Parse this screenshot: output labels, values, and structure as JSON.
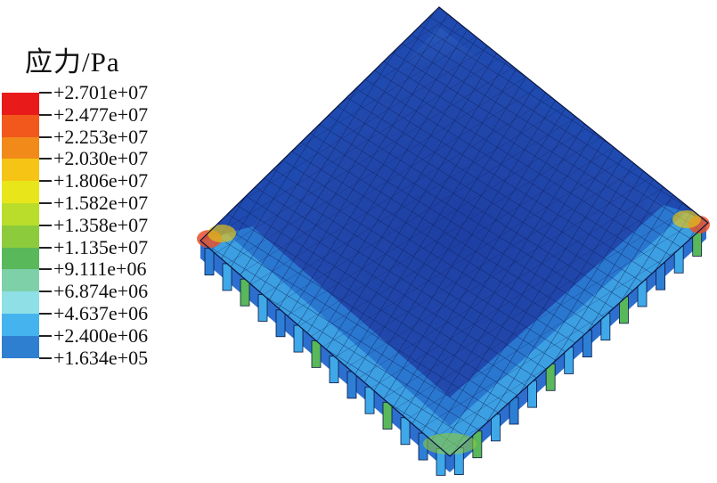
{
  "legend": {
    "title": "应力/Pa",
    "values": [
      "+2.701e+07",
      "+2.477e+07",
      "+2.253e+07",
      "+2.030e+07",
      "+1.806e+07",
      "+1.582e+07",
      "+1.358e+07",
      "+1.135e+07",
      "+9.111e+06",
      "+6.874e+06",
      "+4.637e+06",
      "+2.400e+06",
      "+1.634e+05"
    ],
    "colors": [
      "#e81a1a",
      "#f2581c",
      "#f28a1a",
      "#f5c414",
      "#e8e61a",
      "#b9dd2a",
      "#8ccc3c",
      "#58b85a",
      "#7ed0a8",
      "#8ee0e6",
      "#45b4ee",
      "#2f7fd0",
      "#1c4fb4"
    ]
  }
}
